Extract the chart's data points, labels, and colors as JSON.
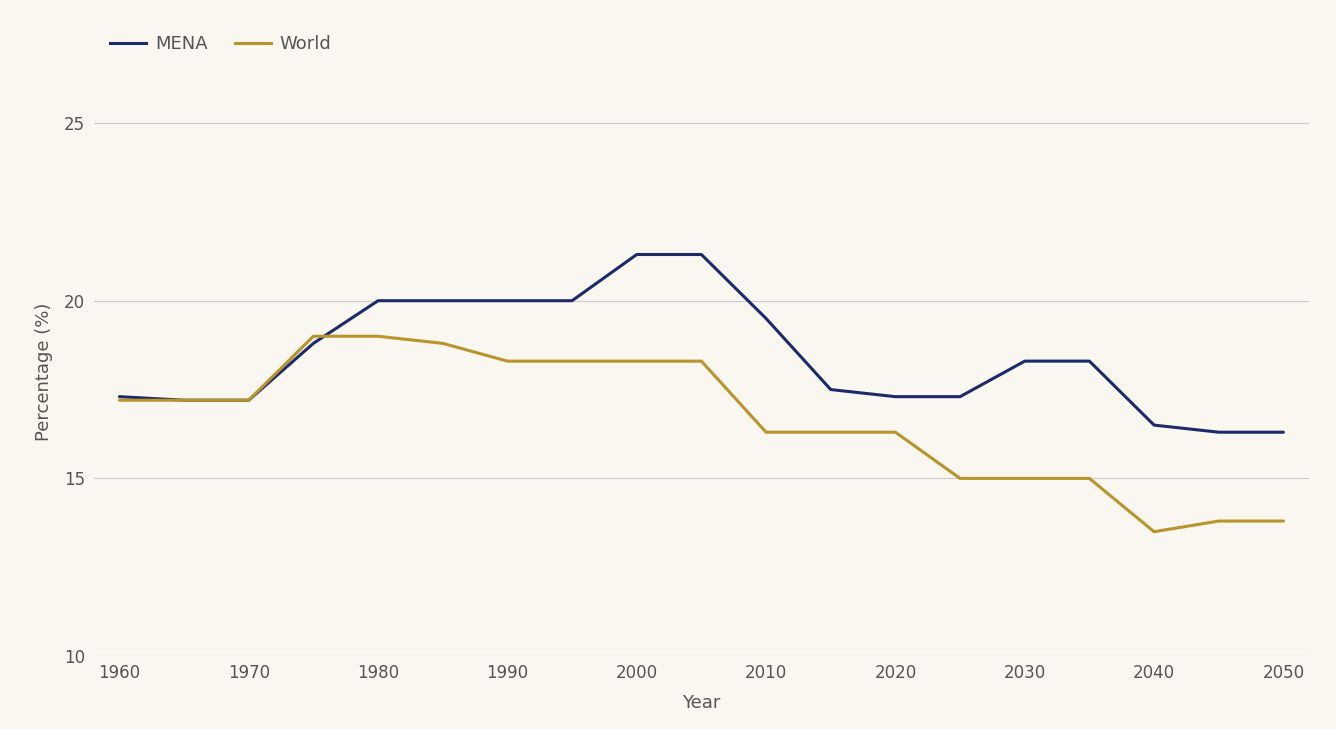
{
  "mena_x": [
    1960,
    1965,
    1970,
    1975,
    1980,
    1985,
    1990,
    1995,
    2000,
    2005,
    2010,
    2015,
    2020,
    2025,
    2030,
    2035,
    2040,
    2045,
    2050
  ],
  "mena_y": [
    17.3,
    17.2,
    17.2,
    18.8,
    20.0,
    20.0,
    20.0,
    20.0,
    21.3,
    21.3,
    19.5,
    17.5,
    17.3,
    17.3,
    18.3,
    18.3,
    16.5,
    16.3,
    16.3
  ],
  "world_x": [
    1960,
    1965,
    1970,
    1975,
    1980,
    1985,
    1990,
    1995,
    2000,
    2005,
    2010,
    2015,
    2020,
    2025,
    2030,
    2035,
    2040,
    2045,
    2050
  ],
  "world_y": [
    17.2,
    17.2,
    17.2,
    19.0,
    19.0,
    18.8,
    18.3,
    18.3,
    18.3,
    18.3,
    16.3,
    16.3,
    16.3,
    15.0,
    15.0,
    15.0,
    13.5,
    13.8,
    13.8
  ],
  "mena_color": "#1b2a6b",
  "world_color": "#b8942a",
  "background_color": "#faf6f0",
  "grid_color": "#cccccc",
  "xlabel": "Year",
  "ylabel": "Percentage (%)",
  "ylim": [
    10,
    26
  ],
  "xlim": [
    1958,
    2052
  ],
  "yticks": [
    10,
    15,
    20,
    25
  ],
  "xticks": [
    1960,
    1970,
    1980,
    1990,
    2000,
    2010,
    2020,
    2030,
    2040,
    2050
  ],
  "legend_labels": [
    "MENA",
    "World"
  ],
  "line_width": 2.2,
  "label_color": "#555555",
  "tick_color": "#555555",
  "tick_fontsize": 12,
  "label_fontsize": 13
}
